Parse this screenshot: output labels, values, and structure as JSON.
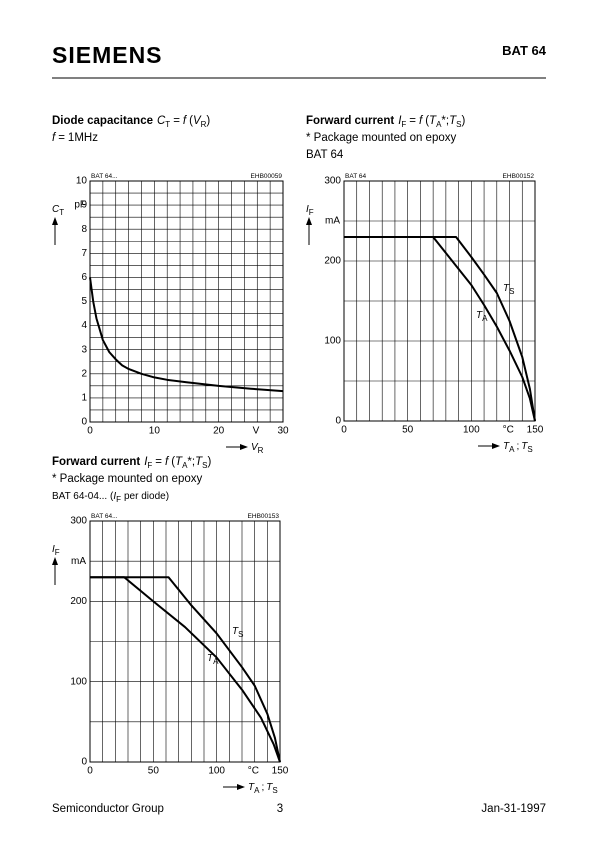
{
  "header": {
    "brand": "SIEMENS",
    "part": "BAT 64"
  },
  "footer": {
    "left": "Semiconductor Group",
    "page": "3",
    "date": "Jan-31-1997"
  },
  "chart_data": [
    {
      "type": "line",
      "title": [
        "Diode capacitance",
        "C",
        "T",
        "=",
        "f",
        "(",
        "V",
        "R",
        ")"
      ],
      "subtitle": [
        "f",
        "=",
        "1MHz"
      ],
      "corner_left": "BAT 64...",
      "corner_right": "EHB00059",
      "ylabel": [
        "C",
        "T"
      ],
      "yunit": "pF",
      "xlabel": [
        "V",
        "R"
      ],
      "xunit": "V",
      "xlim": [
        0,
        30
      ],
      "ylim": [
        0,
        10
      ],
      "xticks": [
        0,
        10,
        20,
        30
      ],
      "yticks": [
        0,
        1,
        2,
        3,
        4,
        5,
        6,
        7,
        8,
        9,
        10
      ],
      "xgrid": [
        0,
        2,
        4,
        6,
        8,
        10,
        12,
        14,
        16,
        18,
        20,
        22,
        24,
        26,
        28,
        30
      ],
      "ygrid": [
        0,
        0.5,
        1,
        1.5,
        2,
        2.5,
        3,
        3.5,
        4,
        4.5,
        5,
        5.5,
        6,
        6.5,
        7,
        7.5,
        8,
        8.5,
        9,
        9.5,
        10
      ],
      "series": [
        {
          "color": "#000000",
          "x": [
            0,
            0.5,
            1,
            2,
            3,
            4,
            5,
            6,
            8,
            10,
            12,
            15,
            20,
            25,
            30
          ],
          "values": [
            6.0,
            5.0,
            4.3,
            3.4,
            2.9,
            2.6,
            2.35,
            2.2,
            2.0,
            1.85,
            1.75,
            1.65,
            1.5,
            1.38,
            1.28
          ]
        }
      ]
    },
    {
      "type": "line",
      "title": [
        "Forward current",
        "I",
        "F",
        "=",
        "f",
        "(",
        "T",
        "A",
        "*;",
        "T",
        "S",
        ")"
      ],
      "subtitle": [
        "* Package mounted on epoxy",
        "BAT 64"
      ],
      "corner_left": "BAT 64",
      "corner_right": "EHB00152",
      "ylabel": [
        "I",
        "F"
      ],
      "yunit": "mA",
      "xlabel": [
        "T",
        "A",
        ";",
        "T",
        "S"
      ],
      "xunit": "°C",
      "xlim": [
        0,
        150
      ],
      "ylim": [
        0,
        300
      ],
      "xticks": [
        0,
        50,
        100,
        150
      ],
      "yticks": [
        0,
        100,
        200,
        300
      ],
      "xgrid": [
        0,
        10,
        20,
        30,
        40,
        50,
        60,
        70,
        80,
        90,
        100,
        110,
        120,
        130,
        140,
        150
      ],
      "ygrid": [
        0,
        50,
        100,
        150,
        200,
        250,
        300
      ],
      "series": [
        {
          "name": [
            "T",
            "S"
          ],
          "color": "#000000",
          "x": [
            0,
            88,
            100,
            110,
            120,
            130,
            140,
            146,
            150
          ],
          "values": [
            230,
            230,
            205,
            183,
            160,
            125,
            80,
            40,
            0
          ]
        },
        {
          "name": [
            "T",
            "A"
          ],
          "color": "#000000",
          "x": [
            0,
            70,
            80,
            90,
            100,
            110,
            120,
            130,
            140,
            146,
            150
          ],
          "values": [
            230,
            230,
            210,
            190,
            170,
            145,
            118,
            88,
            55,
            28,
            0
          ]
        }
      ]
    },
    {
      "type": "line",
      "title": [
        "Forward current",
        "I",
        "F",
        "=",
        "f",
        "(",
        "T",
        "A",
        "*;",
        "T",
        "S",
        ")"
      ],
      "subtitle": [
        "* Package mounted on epoxy",
        "BAT 64-04... (",
        "I",
        "F",
        "per diode)"
      ],
      "corner_left": "BAT 64...",
      "corner_right": "EHB00153",
      "ylabel": [
        "I",
        "F"
      ],
      "yunit": "mA",
      "xlabel": [
        "T",
        "A",
        ";",
        "T",
        "S"
      ],
      "xunit": "°C",
      "xlim": [
        0,
        150
      ],
      "ylim": [
        0,
        300
      ],
      "xticks": [
        0,
        50,
        100,
        150
      ],
      "yticks": [
        0,
        100,
        200,
        300
      ],
      "xgrid": [
        0,
        10,
        20,
        30,
        40,
        50,
        60,
        70,
        80,
        90,
        100,
        110,
        120,
        130,
        140,
        150
      ],
      "ygrid": [
        0,
        50,
        100,
        150,
        200,
        250,
        300
      ],
      "series": [
        {
          "name": [
            "T",
            "S"
          ],
          "color": "#000000",
          "x": [
            0,
            62,
            80,
            100,
            120,
            130,
            140,
            146,
            150
          ],
          "values": [
            230,
            230,
            195,
            160,
            118,
            95,
            60,
            30,
            0
          ]
        },
        {
          "name": [
            "T",
            "A"
          ],
          "color": "#000000",
          "x": [
            0,
            27,
            50,
            75,
            100,
            120,
            135,
            145,
            150
          ],
          "values": [
            230,
            230,
            200,
            168,
            130,
            90,
            55,
            22,
            0
          ]
        }
      ]
    }
  ]
}
